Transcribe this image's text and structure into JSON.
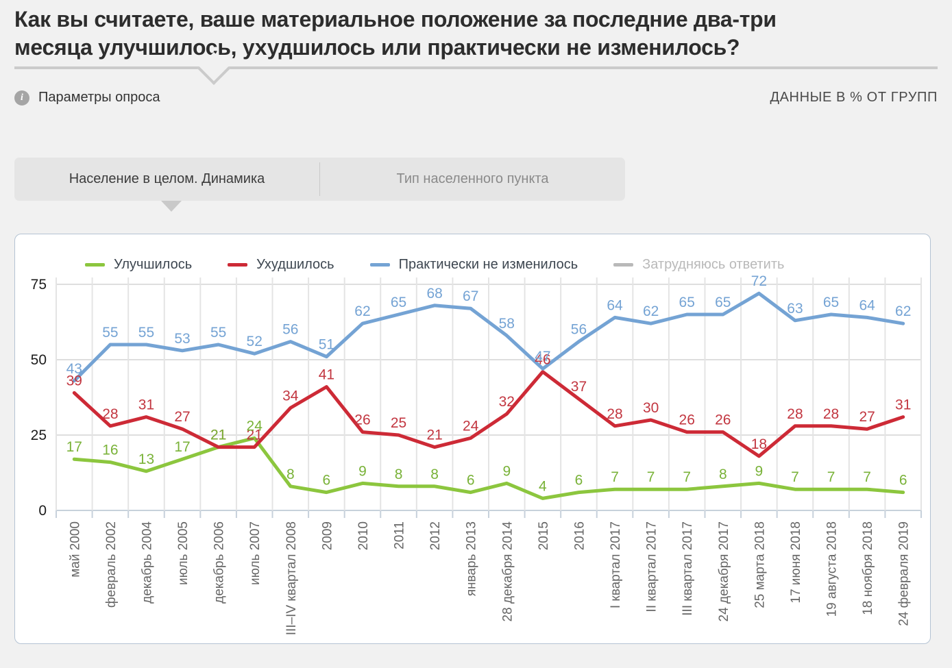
{
  "page": {
    "title_lines": [
      "Как вы считаете, ваше материальное положение за последние два-три",
      "месяца улучшилось, ухудшилось или практически не изменилось?"
    ]
  },
  "header": {
    "info_glyph": "i",
    "params_label": "Параметры опроса",
    "units_label": "ДАННЫЕ В % ОТ ГРУПП"
  },
  "tabs": [
    {
      "label": "Население в целом. Динамика",
      "active": true
    },
    {
      "label": "Тип населенного пункта",
      "active": false
    }
  ],
  "chart_data": {
    "type": "line",
    "title": "",
    "xlabel": "",
    "ylabel": "",
    "ylim": [
      0,
      75
    ],
    "yticks": [
      0,
      25,
      50,
      75
    ],
    "grid": true,
    "legend_position": "top",
    "categories": [
      "май 2000",
      "февраль 2002",
      "декабрь 2004",
      "июль 2005",
      "декабрь 2006",
      "июль 2007",
      "III–IV квартал 2008",
      "2009",
      "2010",
      "2011",
      "2012",
      "январь 2013",
      "28 декабря 2014",
      "2015",
      "2016",
      "I квартал 2017",
      "II квартал 2017",
      "III квартал 2017",
      "24 декабря 2017",
      "25 марта 2018",
      "17 июня 2018",
      "19 августа 2018",
      "18 ноября 2018",
      "24 февраля 2019"
    ],
    "series": [
      {
        "key": "improved",
        "name": "Улучшилось",
        "color": "#8cc63e",
        "label_color": "#79b238",
        "disabled": false,
        "values": [
          17,
          16,
          13,
          17,
          21,
          24,
          8,
          6,
          9,
          8,
          8,
          6,
          9,
          4,
          6,
          7,
          7,
          7,
          8,
          9,
          7,
          7,
          7,
          6
        ]
      },
      {
        "key": "worsened",
        "name": "Ухудшилось",
        "color": "#cd2a36",
        "label_color": "#c23640",
        "disabled": false,
        "values": [
          39,
          28,
          31,
          27,
          21,
          21,
          34,
          41,
          26,
          25,
          21,
          24,
          32,
          46,
          37,
          28,
          30,
          26,
          26,
          18,
          28,
          28,
          27,
          31
        ]
      },
      {
        "key": "unchanged",
        "name": "Практически не изменилось",
        "color": "#74a3d4",
        "label_color": "#74a3d4",
        "disabled": false,
        "values": [
          43,
          55,
          55,
          53,
          55,
          52,
          56,
          51,
          62,
          65,
          68,
          67,
          58,
          47,
          56,
          64,
          62,
          65,
          65,
          72,
          63,
          65,
          64,
          62
        ]
      },
      {
        "key": "undecided",
        "name": "Затрудняюсь ответить",
        "color": "#b9b9b9",
        "label_color": "#b9b9b9",
        "disabled": true,
        "values": []
      }
    ]
  }
}
